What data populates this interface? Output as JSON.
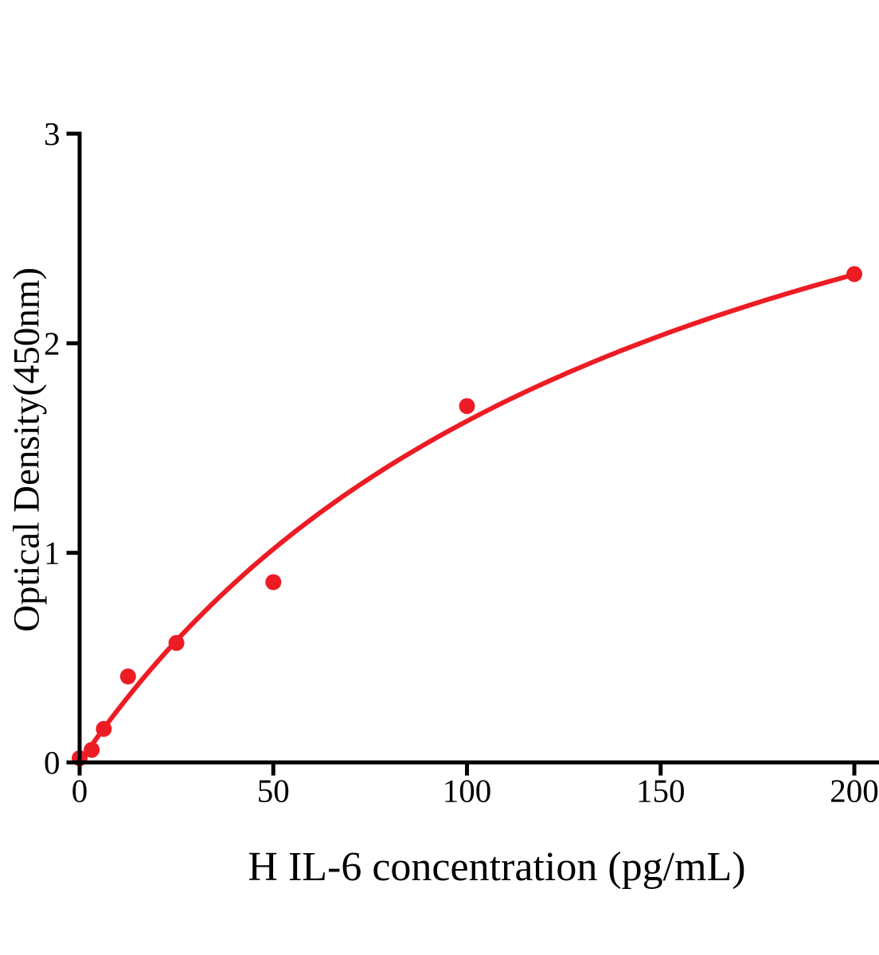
{
  "chart_data": {
    "type": "scatter",
    "title": "",
    "xlabel": "H IL-6 concentration (pg/mL)",
    "ylabel": "Optical Density(450nm)",
    "x_ticks": [
      0,
      50,
      100,
      150,
      200
    ],
    "y_ticks": [
      0,
      1,
      2,
      3
    ],
    "xlim": [
      0,
      206
    ],
    "ylim": [
      0,
      3
    ],
    "grid": false,
    "legend": false,
    "background_color": "#FFFFFF",
    "point_color": "#ED1C24",
    "curve_color": "#ED1C24",
    "axis_color": "#000000",
    "points": [
      {
        "x": 0,
        "y": 0.02
      },
      {
        "x": 3.125,
        "y": 0.06
      },
      {
        "x": 6.25,
        "y": 0.16
      },
      {
        "x": 12.5,
        "y": 0.41
      },
      {
        "x": 25,
        "y": 0.57
      },
      {
        "x": 50,
        "y": 0.86
      },
      {
        "x": 100,
        "y": 1.7
      },
      {
        "x": 200,
        "y": 2.33
      }
    ],
    "fit_curve": {
      "model": "one-site-binding",
      "vmax": 4.08,
      "km": 150.5,
      "x_range": [
        0,
        200
      ]
    }
  }
}
